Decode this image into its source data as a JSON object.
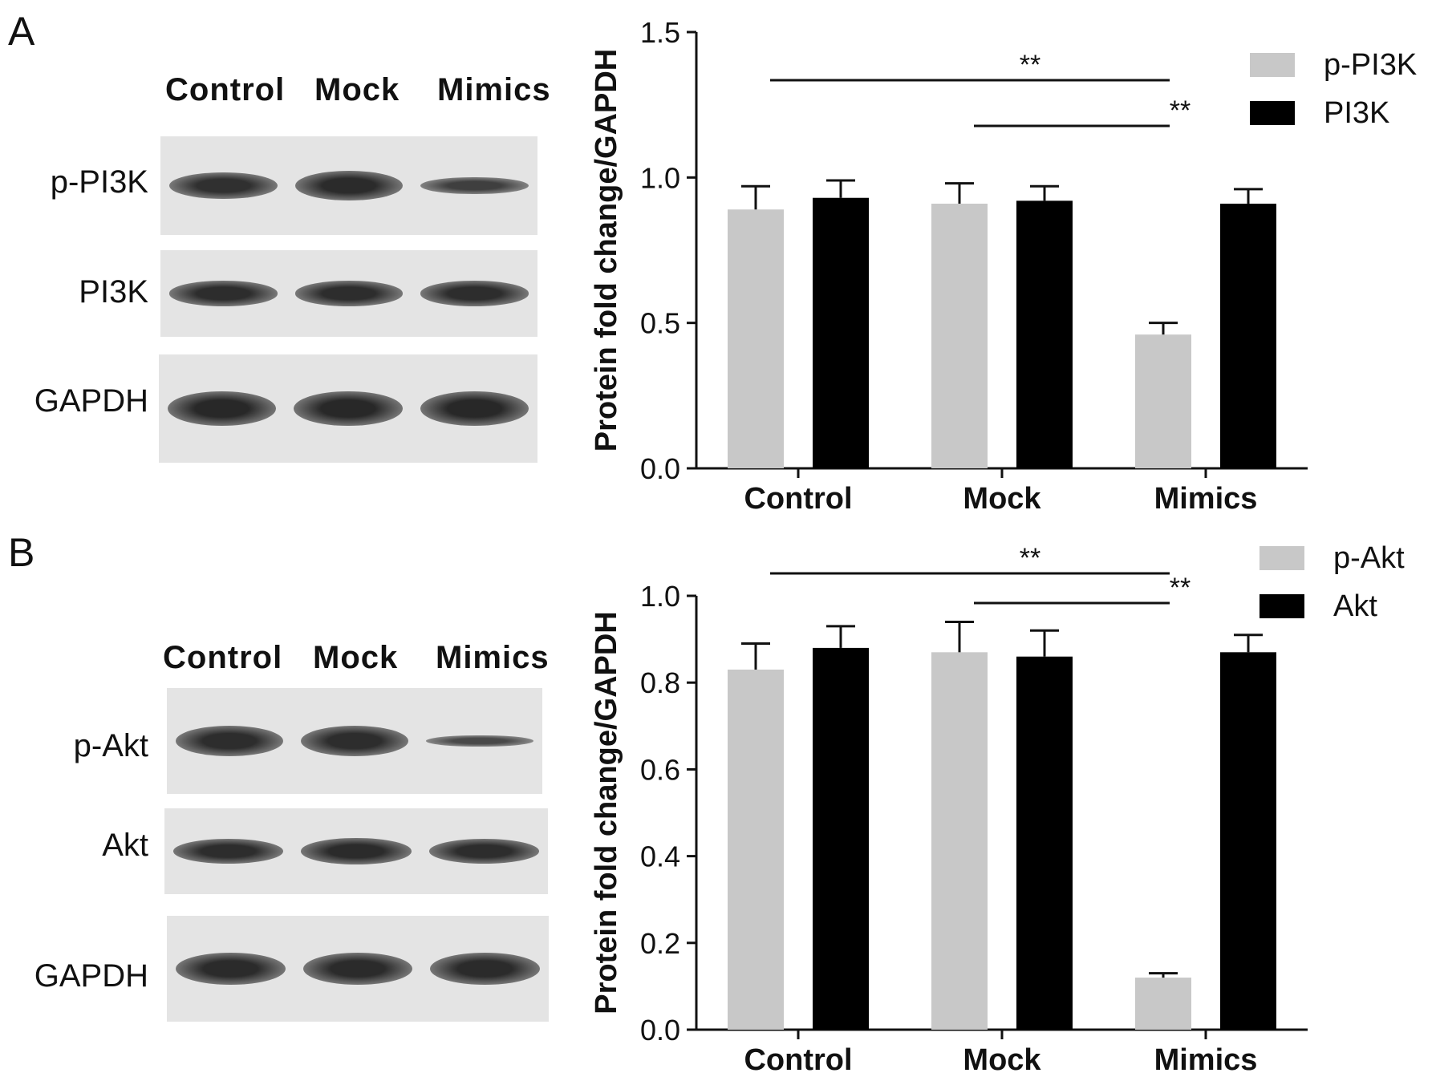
{
  "panels": [
    {
      "letter": "A",
      "blot": {
        "lanes": [
          "Control",
          "Mock",
          "Mimics"
        ],
        "rows": [
          {
            "label": "p-PI3K",
            "intensity": [
              0.85,
              0.95,
              0.55
            ]
          },
          {
            "label": "PI3K",
            "intensity": [
              0.9,
              0.9,
              0.9
            ]
          },
          {
            "label": "GAPDH",
            "intensity": [
              1.0,
              1.0,
              1.0
            ]
          }
        ]
      }
    },
    {
      "letter": "B",
      "blot": {
        "lanes": [
          "Control",
          "Mock",
          "Mimics"
        ],
        "rows": [
          {
            "label": "p-Akt",
            "intensity": [
              0.9,
              0.9,
              0.35
            ]
          },
          {
            "label": "Akt",
            "intensity": [
              0.9,
              0.95,
              0.9
            ]
          },
          {
            "label": "GAPDH",
            "intensity": [
              0.95,
              0.95,
              0.95
            ]
          }
        ]
      }
    }
  ],
  "chart_data": [
    {
      "type": "bar",
      "categories": [
        "Control",
        "Mock",
        "Mimics"
      ],
      "ylabel": "Protein fold change/GAPDH",
      "ylim": [
        0,
        1.5
      ],
      "yticks": [
        "0.0",
        "0.5",
        "1.0",
        "1.5"
      ],
      "legend_position": "top-right",
      "series": [
        {
          "name": "p-PI3K",
          "color": "#c8c8c8",
          "values": [
            0.89,
            0.91,
            0.46
          ],
          "errors": [
            0.08,
            0.07,
            0.04
          ]
        },
        {
          "name": "PI3K",
          "color": "#000000",
          "values": [
            0.93,
            0.92,
            0.91
          ],
          "errors": [
            0.06,
            0.05,
            0.05
          ]
        }
      ],
      "significance": [
        {
          "from": "Control",
          "to": "Mimics",
          "label": "**"
        },
        {
          "from": "Mock",
          "to": "Mimics",
          "label": "**"
        }
      ]
    },
    {
      "type": "bar",
      "categories": [
        "Control",
        "Mock",
        "Mimics"
      ],
      "ylabel": "Protein fold change/GAPDH",
      "ylim": [
        0,
        1.0
      ],
      "yticks": [
        "0.0",
        "0.2",
        "0.4",
        "0.6",
        "0.8",
        "1.0"
      ],
      "legend_position": "top-right",
      "series": [
        {
          "name": "p-Akt",
          "color": "#c8c8c8",
          "values": [
            0.83,
            0.87,
            0.12
          ],
          "errors": [
            0.06,
            0.07,
            0.01
          ]
        },
        {
          "name": "Akt",
          "color": "#000000",
          "values": [
            0.88,
            0.86,
            0.87
          ],
          "errors": [
            0.05,
            0.06,
            0.04
          ]
        }
      ],
      "significance": [
        {
          "from": "Control",
          "to": "Mimics",
          "label": "**"
        },
        {
          "from": "Mock",
          "to": "Mimics",
          "label": "**"
        }
      ]
    }
  ]
}
